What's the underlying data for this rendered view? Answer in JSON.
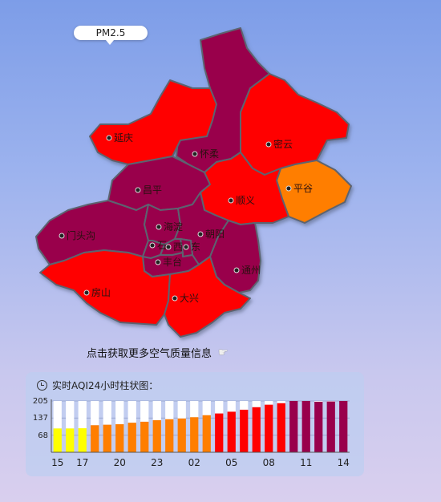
{
  "map": {
    "pollutant_label": "PM2.5",
    "more_link": "点击获取更多空气质量信息",
    "levels": {
      "moderate": "#ffff00",
      "sensitive": "#ff7e00",
      "unhealthy": "#ff0000",
      "very_unhealthy": "#99004c"
    },
    "districts": [
      {
        "id": "yanqing",
        "name": "延庆",
        "level": "unhealthy"
      },
      {
        "id": "huairou",
        "name": "怀柔",
        "level": "very_unhealthy"
      },
      {
        "id": "miyun",
        "name": "密云",
        "level": "unhealthy"
      },
      {
        "id": "pinggu",
        "name": "平谷",
        "level": "sensitive"
      },
      {
        "id": "changping",
        "name": "昌平",
        "level": "very_unhealthy"
      },
      {
        "id": "shunyi",
        "name": "顺义",
        "level": "unhealthy"
      },
      {
        "id": "mentougou",
        "name": "门头沟",
        "level": "very_unhealthy"
      },
      {
        "id": "haidian",
        "name": "海淀",
        "level": "very_unhealthy"
      },
      {
        "id": "chaoyang",
        "name": "朝阳",
        "level": "very_unhealthy"
      },
      {
        "id": "shijingshan",
        "name": "石",
        "level": "very_unhealthy"
      },
      {
        "id": "xicheng",
        "name": "西",
        "level": "very_unhealthy"
      },
      {
        "id": "dongcheng",
        "name": "东",
        "level": "very_unhealthy"
      },
      {
        "id": "fengtai",
        "name": "丰台",
        "level": "very_unhealthy"
      },
      {
        "id": "tongzhou",
        "name": "通州",
        "level": "very_unhealthy"
      },
      {
        "id": "fangshan",
        "name": "房山",
        "level": "unhealthy"
      },
      {
        "id": "daxing",
        "name": "大兴",
        "level": "unhealthy"
      }
    ]
  },
  "panel": {
    "title": "实时AQI24小时柱状图："
  },
  "chart_data": {
    "type": "bar",
    "title": "实时AQI24小时柱状图：",
    "ylim": [
      0,
      205
    ],
    "yticks": [
      68,
      137,
      205
    ],
    "x_tick_labels": [
      "15",
      "17",
      "20",
      "23",
      "02",
      "05",
      "08",
      "11",
      "14"
    ],
    "x_tick_positions": [
      0,
      2,
      5,
      8,
      11,
      14,
      17,
      20,
      23
    ],
    "hours": [
      "15",
      "16",
      "17",
      "18",
      "19",
      "20",
      "21",
      "22",
      "23",
      "00",
      "01",
      "02",
      "03",
      "04",
      "05",
      "06",
      "07",
      "08",
      "09",
      "10",
      "11",
      "12",
      "13",
      "14"
    ],
    "values": [
      95,
      95,
      96,
      108,
      110,
      112,
      118,
      122,
      128,
      132,
      135,
      140,
      148,
      155,
      162,
      170,
      180,
      190,
      196,
      205,
      205,
      202,
      203,
      205
    ],
    "colors": [
      "#ffff00",
      "#ffff00",
      "#ffff00",
      "#ff7e00",
      "#ff7e00",
      "#ff7e00",
      "#ff7e00",
      "#ff7e00",
      "#ff7e00",
      "#ff7e00",
      "#ff7e00",
      "#ff7e00",
      "#ff7e00",
      "#ff0000",
      "#ff0000",
      "#ff0000",
      "#ff0000",
      "#ff0000",
      "#ff0000",
      "#99004c",
      "#99004c",
      "#99004c",
      "#99004c",
      "#99004c"
    ]
  }
}
